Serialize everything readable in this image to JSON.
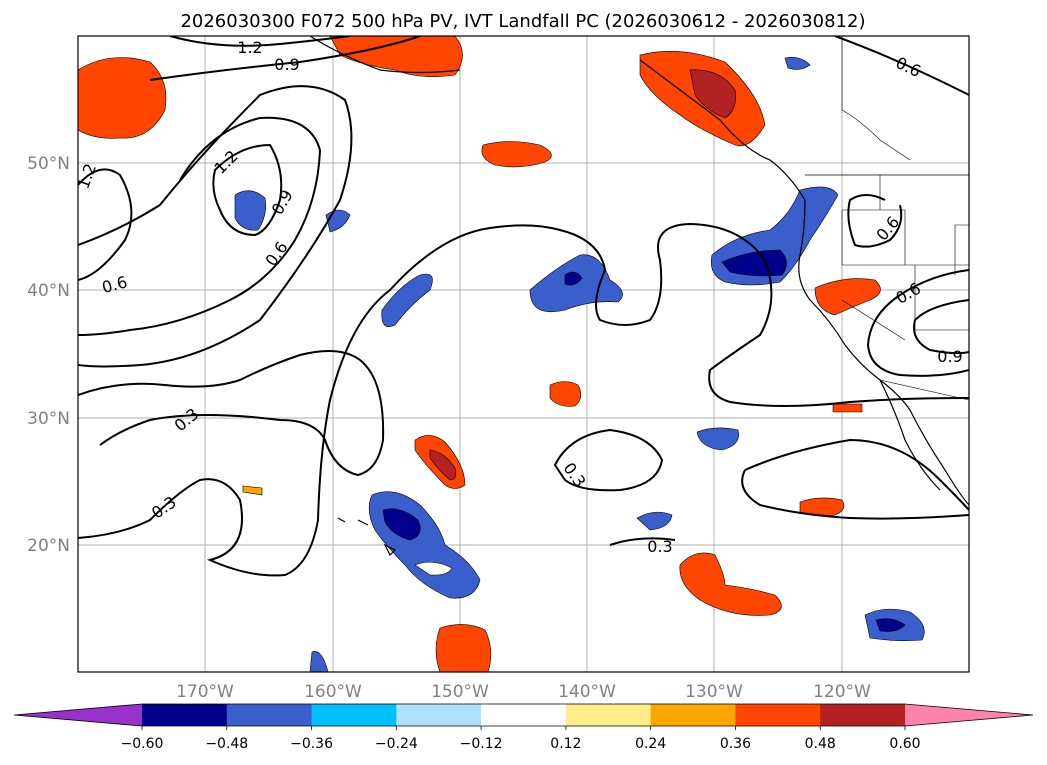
{
  "title": "2026030300 F072 500 hPa PV, IVT Landfall PC (2026030612 - 2026030812)",
  "map": {
    "lat_labels": [
      "50°N",
      "40°N",
      "30°N",
      "20°N"
    ],
    "lon_labels": [
      "170°W",
      "160°W",
      "150°W",
      "140°W",
      "130°W",
      "120°W"
    ],
    "extent": {
      "lon_min": -180,
      "lon_max": -110,
      "lat_min": 10,
      "lat_max": 60
    },
    "grid_lats": [
      50,
      40,
      30,
      20
    ],
    "grid_lons": [
      -170,
      -160,
      -150,
      -140,
      -130,
      -120
    ]
  },
  "contour_labels": [
    {
      "id": "c1",
      "text": "1.2"
    },
    {
      "id": "c2",
      "text": "0.9"
    },
    {
      "id": "c3",
      "text": "0.6"
    },
    {
      "id": "c4",
      "text": "1.2"
    },
    {
      "id": "c5",
      "text": "1.2"
    },
    {
      "id": "c6",
      "text": "0.9"
    },
    {
      "id": "c7",
      "text": "0.6"
    },
    {
      "id": "c8",
      "text": "0.6"
    },
    {
      "id": "c9",
      "text": "0.3"
    },
    {
      "id": "c10",
      "text": "0.3"
    },
    {
      "id": "c11",
      "text": "0.3"
    },
    {
      "id": "c12",
      "text": "0.3"
    },
    {
      "id": "c13",
      "text": "0.6"
    },
    {
      "id": "c14",
      "text": "0.6"
    },
    {
      "id": "c15",
      "text": "0.9"
    }
  ],
  "colorbar": {
    "ticks": [
      "−0.60",
      "−0.48",
      "−0.36",
      "−0.24",
      "−0.12",
      "0.12",
      "0.24",
      "0.36",
      "0.48",
      "0.60"
    ],
    "colors": [
      "#9932cc",
      "#00008b",
      "#3a5fcd",
      "#00bfff",
      "#b0e2ff",
      "#ffffff",
      "#ffec8b",
      "#ffa500",
      "#ff4500",
      "#b22222",
      "#ff82ab"
    ]
  }
}
